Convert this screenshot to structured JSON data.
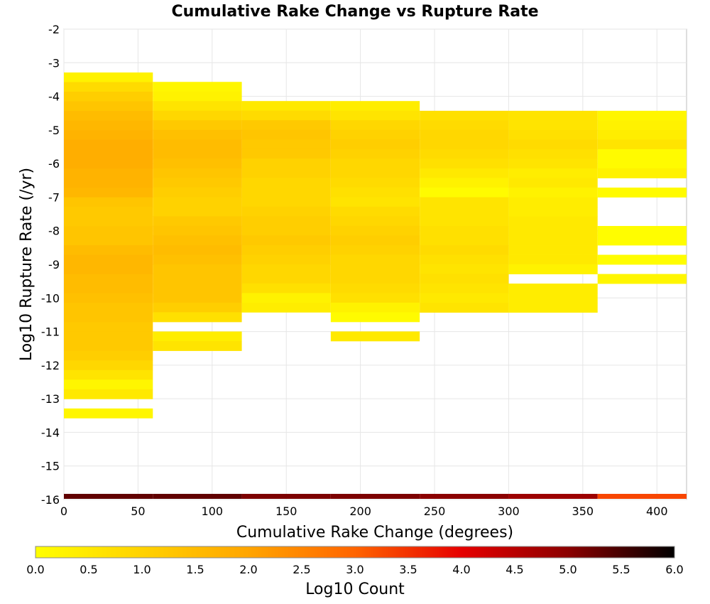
{
  "chart_data": {
    "type": "heatmap",
    "title": "Cumulative Rake Change vs Rupture Rate",
    "xlabel": "Cumulative Rake Change (degrees)",
    "ylabel": "Log10 Rupture Rate (/yr)",
    "xlim": [
      0,
      420
    ],
    "ylim": [
      -16,
      -2
    ],
    "x_ticks": [
      0,
      50,
      100,
      150,
      200,
      250,
      300,
      350,
      400
    ],
    "y_ticks": [
      -2,
      -3,
      -4,
      -5,
      -6,
      -7,
      -8,
      -9,
      -10,
      -11,
      -12,
      -13,
      -14,
      -15,
      -16
    ],
    "x_bin_edges": [
      0,
      60,
      120,
      180,
      240,
      300,
      360,
      420
    ],
    "y_bin_width": 0.2857,
    "grid": true,
    "colorbar": {
      "label": "Log10 Count",
      "min": 0.0,
      "max": 6.0,
      "ticks": [
        "0.0",
        "0.5",
        "1.0",
        "1.5",
        "2.0",
        "2.5",
        "3.0",
        "3.5",
        "4.0",
        "4.5",
        "5.0",
        "5.5",
        "6.0"
      ],
      "colors": [
        "#ffff00",
        "#ffd200",
        "#ffa500",
        "#ff6400",
        "#e60000",
        "#8b0000",
        "#000000"
      ]
    },
    "columns": [
      {
        "x_start": 0,
        "x_end": 60,
        "y_top": -3.29,
        "values": [
          0.3,
          0.8,
          1.1,
          1.3,
          1.5,
          1.6,
          1.7,
          1.8,
          1.8,
          1.8,
          1.7,
          1.7,
          1.6,
          1.3,
          1.2,
          1.2,
          1.3,
          1.3,
          1.5,
          1.6,
          1.6,
          1.5,
          1.5,
          1.4,
          1.3,
          1.3,
          1.2,
          1.2,
          1.2,
          1.1,
          0.9,
          0.6,
          0.2,
          0.5,
          null,
          0.2
        ]
      },
      {
        "x_start": 60,
        "x_end": 120,
        "y_top": -3.57,
        "values": [
          0.2,
          0.3,
          0.6,
          0.9,
          1.2,
          1.4,
          1.5,
          1.5,
          1.4,
          1.3,
          1.2,
          1.1,
          1.0,
          1.0,
          1.2,
          1.3,
          1.4,
          1.5,
          1.4,
          1.3,
          1.3,
          1.3,
          1.3,
          1.1,
          0.7,
          null,
          0.4,
          0.6
        ]
      },
      {
        "x_start": 120,
        "x_end": 180,
        "y_top": -4.14,
        "values": [
          0.5,
          0.8,
          1.2,
          1.3,
          1.2,
          1.2,
          1.0,
          1.0,
          0.9,
          0.9,
          0.9,
          1.0,
          1.1,
          1.1,
          1.2,
          1.1,
          1.0,
          0.9,
          0.9,
          0.7,
          0.3,
          0.4
        ]
      },
      {
        "x_start": 180,
        "x_end": 240,
        "y_top": -4.14,
        "values": [
          0.4,
          0.6,
          0.9,
          1.0,
          1.1,
          1.0,
          0.9,
          0.9,
          0.8,
          0.7,
          0.6,
          0.8,
          0.9,
          1.0,
          1.1,
          1.0,
          0.9,
          0.9,
          0.9,
          0.8,
          0.7,
          0.3,
          0.1,
          null,
          0.5
        ]
      },
      {
        "x_start": 240,
        "x_end": 300,
        "y_top": -4.43,
        "values": [
          0.7,
          0.8,
          0.9,
          0.9,
          0.8,
          0.7,
          0.5,
          0.3,
          0.1,
          0.6,
          0.6,
          0.6,
          0.7,
          0.7,
          0.8,
          0.7,
          0.6,
          0.7,
          0.6,
          0.5,
          0.6
        ]
      },
      {
        "x_start": 300,
        "x_end": 360,
        "y_top": -4.43,
        "values": [
          0.6,
          0.6,
          0.7,
          0.8,
          0.7,
          0.6,
          0.4,
          0.5,
          0.3,
          0.4,
          0.4,
          0.5,
          0.5,
          0.5,
          0.5,
          0.5,
          0.3,
          null,
          0.4,
          0.4,
          0.4
        ]
      },
      {
        "x_start": 360,
        "x_end": 420,
        "y_top": -4.43,
        "values": [
          0.2,
          0.3,
          0.4,
          0.6,
          0.1,
          0.1,
          0.3,
          null,
          0.1,
          null,
          null,
          null,
          0.05,
          0.05,
          null,
          0.05,
          null,
          0.2
        ]
      }
    ],
    "bottom_row": {
      "y": -16,
      "values": [
        5.3,
        5.3,
        5.1,
        5.1,
        5.0,
        4.8,
        3.3
      ]
    }
  }
}
